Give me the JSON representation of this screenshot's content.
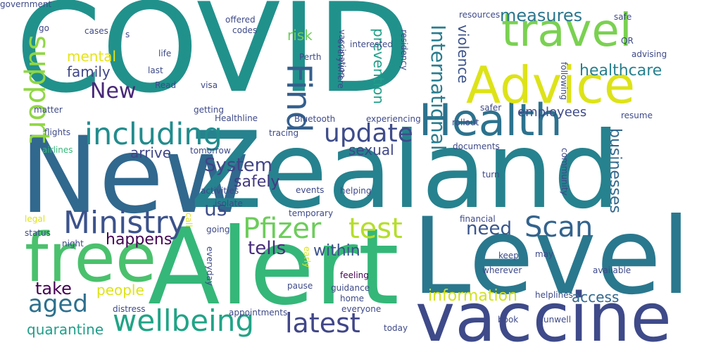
{
  "words": [
    {
      "text": "COVID",
      "color": "#21918c",
      "vertical": false
    },
    {
      "text": "New",
      "color": "#31688e",
      "vertical": false
    },
    {
      "text": "Zealand",
      "color": "#26828e",
      "vertical": false
    },
    {
      "text": "Alert",
      "color": "#35b779",
      "vertical": false
    },
    {
      "text": "Level",
      "color": "#2a788e",
      "vertical": false
    },
    {
      "text": "vaccine",
      "color": "#3e4a89",
      "vertical": false
    },
    {
      "text": "free",
      "color": "#4ac16d",
      "vertical": false
    },
    {
      "text": "Health",
      "color": "#2c728e",
      "vertical": false
    },
    {
      "text": "Advice",
      "color": "#dde318",
      "vertical": false
    },
    {
      "text": "travel",
      "color": "#7ad151",
      "vertical": false
    },
    {
      "text": "including",
      "color": "#228c8d",
      "vertical": false
    },
    {
      "text": "Find",
      "color": "#355f8d",
      "vertical": true
    },
    {
      "text": "update",
      "color": "#3e4c8a",
      "vertical": false
    },
    {
      "text": "support",
      "color": "#8fd744",
      "vertical": true
    },
    {
      "text": "Ministry",
      "color": "#3b528b",
      "vertical": false
    },
    {
      "text": "Pfizer",
      "color": "#6ccd5a",
      "vertical": false
    },
    {
      "text": "test",
      "color": "#b5de2b",
      "vertical": false
    },
    {
      "text": "Scan",
      "color": "#33638d",
      "vertical": false
    },
    {
      "text": "wellbeing",
      "color": "#20a486",
      "vertical": false
    },
    {
      "text": "latest",
      "color": "#404688",
      "vertical": false
    },
    {
      "text": "aged",
      "color": "#2d708e",
      "vertical": false
    },
    {
      "text": "International",
      "color": "#287c8e",
      "vertical": true
    },
    {
      "text": "measures",
      "color": "#2a768e",
      "vertical": false
    },
    {
      "text": "New",
      "color": "#482878",
      "vertical": false
    },
    {
      "text": "us",
      "color": "#3d4e8a",
      "vertical": false
    },
    {
      "text": "System",
      "color": "#414487",
      "vertical": false
    },
    {
      "text": "tells",
      "color": "#472d7b",
      "vertical": false
    },
    {
      "text": "need",
      "color": "#39568c",
      "vertical": false
    },
    {
      "text": "healthcare",
      "color": "#27808e",
      "vertical": false
    },
    {
      "text": "take",
      "color": "#440154",
      "vertical": false
    },
    {
      "text": "information",
      "color": "#d0e11c",
      "vertical": false
    },
    {
      "text": "businesses",
      "color": "#31688e",
      "vertical": true
    },
    {
      "text": "happens",
      "color": "#440154",
      "vertical": false
    },
    {
      "text": "within",
      "color": "#3b528b",
      "vertical": false
    },
    {
      "text": "safely",
      "color": "#443983",
      "vertical": false
    },
    {
      "text": "arrive",
      "color": "#404688",
      "vertical": false
    },
    {
      "text": "sexual",
      "color": "#3f4788",
      "vertical": false
    },
    {
      "text": "mental",
      "color": "#e7e419",
      "vertical": false
    },
    {
      "text": "family",
      "color": "#404688",
      "vertical": false
    },
    {
      "text": "people",
      "color": "#dde318",
      "vertical": false
    },
    {
      "text": "quarantine",
      "color": "#1f9e89",
      "vertical": false
    },
    {
      "text": "access",
      "color": "#31688e",
      "vertical": false
    },
    {
      "text": "violence",
      "color": "#3b528b",
      "vertical": true
    },
    {
      "text": "prevention",
      "color": "#1fa088",
      "vertical": true
    },
    {
      "text": "risk",
      "color": "#6ece58",
      "vertical": false
    },
    {
      "text": "employees",
      "color": "#3e4a89",
      "vertical": false
    },
    {
      "text": "go",
      "color": "#404688",
      "vertical": false
    },
    {
      "text": "cases",
      "color": "#3e4a89",
      "vertical": false
    },
    {
      "text": "s",
      "color": "#3e4a89",
      "vertical": false
    },
    {
      "text": "life",
      "color": "#3e4a89",
      "vertical": false
    },
    {
      "text": "matter",
      "color": "#3e4a89",
      "vertical": false
    },
    {
      "text": "flights",
      "color": "#3e4a89",
      "vertical": false
    },
    {
      "text": "airlines",
      "color": "#35b779",
      "vertical": false
    },
    {
      "text": "offered",
      "color": "#3e4a89",
      "vertical": false
    },
    {
      "text": "codes",
      "color": "#3e4a89",
      "vertical": false
    },
    {
      "text": "last",
      "color": "#3e4a89",
      "vertical": false
    },
    {
      "text": "Read",
      "color": "#3e4a89",
      "vertical": false
    },
    {
      "text": "Perth",
      "color": "#3e4a89",
      "vertical": false
    },
    {
      "text": "getting",
      "color": "#3e4a89",
      "vertical": false
    },
    {
      "text": "Healthline",
      "color": "#3e4a89",
      "vertical": false
    },
    {
      "text": "visa",
      "color": "#3e4a89",
      "vertical": false
    },
    {
      "text": "tomorrow",
      "color": "#3e4a89",
      "vertical": false
    },
    {
      "text": "activities",
      "color": "#3e4a89",
      "vertical": false
    },
    {
      "text": "isolate",
      "color": "#3e4a89",
      "vertical": false
    },
    {
      "text": "legal",
      "color": "#dde318",
      "vertical": false
    },
    {
      "text": "status",
      "color": "#3e4a89",
      "vertical": false
    },
    {
      "text": "night",
      "color": "#3e4a89",
      "vertical": false
    },
    {
      "text": "going",
      "color": "#3e4a89",
      "vertical": false
    },
    {
      "text": "distress",
      "color": "#3e4a89",
      "vertical": false
    },
    {
      "text": "appointments",
      "color": "#3e4a89",
      "vertical": false
    },
    {
      "text": "everyday",
      "color": "#3e4a89",
      "vertical": true
    },
    {
      "text": "call",
      "color": "#dde318",
      "vertical": true
    },
    {
      "text": "events",
      "color": "#3e4a89",
      "vertical": false
    },
    {
      "text": "temporary",
      "color": "#3e4a89",
      "vertical": false
    },
    {
      "text": "helping",
      "color": "#3e4a89",
      "vertical": false
    },
    {
      "text": "early",
      "color": "#dde318",
      "vertical": true
    },
    {
      "text": "pause",
      "color": "#3e4a89",
      "vertical": false
    },
    {
      "text": "feeling",
      "color": "#440154",
      "vertical": false
    },
    {
      "text": "guidance",
      "color": "#3e4a89",
      "vertical": false
    },
    {
      "text": "home",
      "color": "#3e4a89",
      "vertical": false
    },
    {
      "text": "everyone",
      "color": "#3e4a89",
      "vertical": false
    },
    {
      "text": "today",
      "color": "#3e4a89",
      "vertical": false
    },
    {
      "text": "book",
      "color": "#3e4a89",
      "vertical": false
    },
    {
      "text": "unwell",
      "color": "#3e4a89",
      "vertical": false
    },
    {
      "text": "helplines",
      "color": "#3e4a89",
      "vertical": false
    },
    {
      "text": "available",
      "color": "#3e4a89",
      "vertical": false
    },
    {
      "text": "wherever",
      "color": "#3e4a89",
      "vertical": false
    },
    {
      "text": "may",
      "color": "#3e4a89",
      "vertical": false
    },
    {
      "text": "financial",
      "color": "#3e4a89",
      "vertical": false
    },
    {
      "text": "keep",
      "color": "#3e4a89",
      "vertical": false
    },
    {
      "text": "turn",
      "color": "#3e4a89",
      "vertical": false
    },
    {
      "text": "documents",
      "color": "#3e4a89",
      "vertical": false
    },
    {
      "text": "community",
      "color": "#3e4a89",
      "vertical": true
    },
    {
      "text": "rollout",
      "color": "#3e4a89",
      "vertical": false
    },
    {
      "text": "safer",
      "color": "#3e4a89",
      "vertical": false
    },
    {
      "text": "resume",
      "color": "#3e4a89",
      "vertical": false
    },
    {
      "text": "tracing",
      "color": "#3e4a89",
      "vertical": false
    },
    {
      "text": "Bluetooth",
      "color": "#3e4a89",
      "vertical": false
    },
    {
      "text": "experiencing",
      "color": "#3e4a89",
      "vertical": false
    },
    {
      "text": "interested",
      "color": "#3e4a89",
      "vertical": false
    },
    {
      "text": "vaccination",
      "color": "#3e4a89",
      "vertical": true
    },
    {
      "text": "everywhere",
      "color": "#3e4a89",
      "vertical": true
    },
    {
      "text": "residency",
      "color": "#3e4a89",
      "vertical": true
    },
    {
      "text": "following",
      "color": "#3e4a89",
      "vertical": true
    },
    {
      "text": "advising",
      "color": "#3e4a89",
      "vertical": false
    },
    {
      "text": "QR",
      "color": "#3e4a89",
      "vertical": false
    },
    {
      "text": "safe",
      "color": "#3e4a89",
      "vertical": false
    },
    {
      "text": "resources",
      "color": "#3e4a89",
      "vertical": false
    },
    {
      "text": "government",
      "color": "#3e4a89",
      "vertical": false
    }
  ]
}
